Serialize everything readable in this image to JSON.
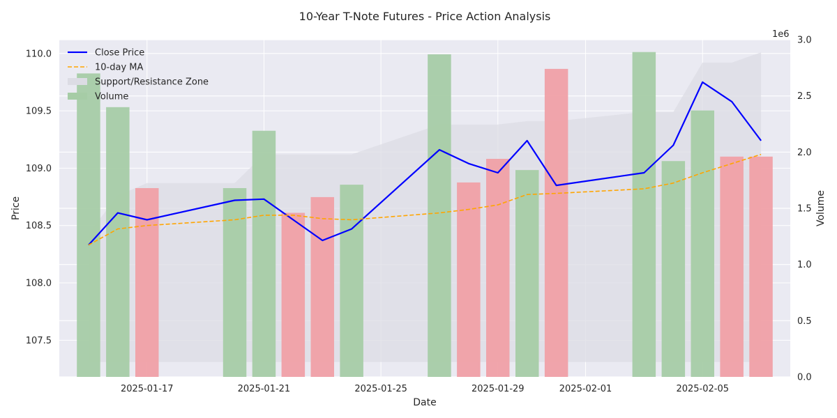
{
  "chart_data": {
    "type": "line",
    "title": "10-Year T-Note Futures - Price Action Analysis",
    "xlabel": "Date",
    "ylabel": "Price",
    "y2label": "Volume",
    "y2_offset_label": "1e6",
    "xlim": [
      "2025-01-14",
      "2025-02-08"
    ],
    "ylim": [
      107.18,
      110.12
    ],
    "y2lim": [
      0,
      3000000
    ],
    "x_ticks": [
      "2025-01-17",
      "2025-01-21",
      "2025-01-25",
      "2025-01-29",
      "2025-02-01",
      "2025-02-05"
    ],
    "y_ticks": [
      107.5,
      108.0,
      108.5,
      109.0,
      109.5,
      110.0
    ],
    "y_tick_labels": [
      "107.5",
      "108.0",
      "108.5",
      "109.0",
      "109.5",
      "110.0"
    ],
    "y2_ticks": [
      0,
      500000,
      1000000,
      1500000,
      2000000,
      2500000,
      3000000
    ],
    "y2_tick_labels": [
      "0.0",
      "0.5",
      "1.0",
      "1.5",
      "2.0",
      "2.5",
      "3.0"
    ],
    "grid": true,
    "legend_position": "top-left",
    "legend": [
      {
        "label": "Close Price",
        "kind": "line",
        "color": "#0000ff"
      },
      {
        "label": "10-day MA",
        "kind": "dashed",
        "color": "#ffa500"
      },
      {
        "label": "Support/Resistance Zone",
        "kind": "patch",
        "color": "#dcdce4"
      },
      {
        "label": "Volume",
        "kind": "patch",
        "color": "#a6cca6"
      }
    ],
    "dates": [
      "2025-01-15",
      "2025-01-16",
      "2025-01-17",
      "2025-01-20",
      "2025-01-21",
      "2025-01-22",
      "2025-01-23",
      "2025-01-24",
      "2025-01-27",
      "2025-01-28",
      "2025-01-29",
      "2025-01-30",
      "2025-01-31",
      "2025-02-03",
      "2025-02-04",
      "2025-02-05",
      "2025-02-06",
      "2025-02-07"
    ],
    "series": [
      {
        "name": "Close Price",
        "color": "#0000ff",
        "style": "solid",
        "values": [
          108.33,
          108.61,
          108.55,
          108.72,
          108.73,
          108.55,
          108.37,
          108.47,
          109.16,
          109.04,
          108.96,
          109.24,
          108.85,
          108.96,
          109.2,
          109.75,
          109.58,
          109.24
        ]
      },
      {
        "name": "10-day MA",
        "color": "#ffa500",
        "style": "dashed",
        "values": [
          108.33,
          108.47,
          108.5,
          108.55,
          108.59,
          108.59,
          108.56,
          108.55,
          108.61,
          108.64,
          108.68,
          108.77,
          108.78,
          108.82,
          108.87,
          108.96,
          109.04,
          109.12
        ]
      }
    ],
    "band": {
      "name": "Support/Resistance Zone",
      "color": "#dcdce4",
      "upper": [
        108.43,
        108.76,
        108.87,
        108.87,
        109.12,
        109.12,
        109.12,
        109.12,
        109.38,
        109.38,
        109.38,
        109.41,
        109.41,
        109.49,
        109.49,
        109.92,
        109.92,
        110.01
      ],
      "lower": [
        107.31,
        107.31,
        107.31,
        107.31,
        107.31,
        107.31,
        107.31,
        107.31,
        107.31,
        107.31,
        107.31,
        107.31,
        107.31,
        107.31,
        107.31,
        107.31,
        107.31,
        107.31
      ]
    },
    "volume": {
      "name": "Volume",
      "up_color": "#a6cca6",
      "down_color": "#f0a0a6",
      "values": [
        2700000,
        2400000,
        1680000,
        1680000,
        2190000,
        1460000,
        1600000,
        1710000,
        2870000,
        1730000,
        1940000,
        1840000,
        2740000,
        2890000,
        1920000,
        2370000,
        1960000,
        1960000
      ],
      "direction": [
        "up",
        "up",
        "down",
        "up",
        "up",
        "down",
        "down",
        "up",
        "up",
        "down",
        "down",
        "up",
        "down",
        "up",
        "up",
        "up",
        "down",
        "down"
      ]
    }
  }
}
